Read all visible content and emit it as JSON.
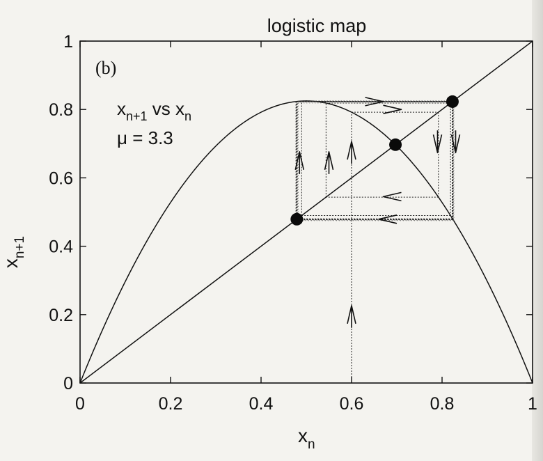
{
  "chart_data": {
    "type": "line",
    "title": "logistic map",
    "panel_label": "(b)",
    "annotation": {
      "line1": {
        "main": "x",
        "sub": "n+1",
        "mid": " vs x",
        "sub2": "n"
      },
      "line2": "μ = 3.3"
    },
    "xlabel": {
      "main": "x",
      "sub": "n"
    },
    "ylabel": {
      "main": "x",
      "sub": "n+1"
    },
    "xlim": [
      0,
      1
    ],
    "ylim": [
      0,
      1
    ],
    "xticks": [
      0,
      0.2,
      0.4,
      0.6,
      0.8,
      1
    ],
    "yticks": [
      0,
      0.2,
      0.4,
      0.6,
      0.8,
      1
    ],
    "xtick_labels": [
      "0",
      "0.2",
      "0.4",
      "0.6",
      "0.8",
      "1"
    ],
    "ytick_labels": [
      "0",
      "0.2",
      "0.4",
      "0.6",
      "0.8",
      "1"
    ],
    "mu": 3.3,
    "series": [
      {
        "kind": "parabola",
        "formula": "x_{n+1} = μ x_n (1 - x_n)",
        "style": "solid"
      },
      {
        "kind": "diagonal",
        "formula": "x_{n+1} = x_n",
        "style": "solid"
      }
    ],
    "fixed_points": [
      {
        "x": 0.479,
        "y": 0.479
      },
      {
        "x": 0.697,
        "y": 0.697
      },
      {
        "x": 0.823,
        "y": 0.823
      }
    ],
    "cobweb_outer": {
      "cycle": [
        0.479,
        0.823
      ],
      "arrows": [
        {
          "x": 0.485,
          "y": 0.65,
          "dir": "up"
        },
        {
          "x": 0.65,
          "y": 0.823,
          "dir": "right"
        },
        {
          "x": 0.83,
          "y": 0.7,
          "dir": "down"
        },
        {
          "x": 0.68,
          "y": 0.479,
          "dir": "left"
        }
      ]
    },
    "cobweb_inner": {
      "start_x": 0.6,
      "arrows": [
        {
          "x": 0.6,
          "y": 0.2,
          "dir": "up"
        },
        {
          "x": 0.6,
          "y": 0.68,
          "dir": "up"
        },
        {
          "x": 0.55,
          "y": 0.65,
          "dir": "up"
        },
        {
          "x": 0.69,
          "y": 0.8,
          "dir": "right"
        },
        {
          "x": 0.79,
          "y": 0.7,
          "dir": "down"
        },
        {
          "x": 0.69,
          "y": 0.545,
          "dir": "left"
        }
      ]
    },
    "grid": false,
    "legend": "none"
  }
}
